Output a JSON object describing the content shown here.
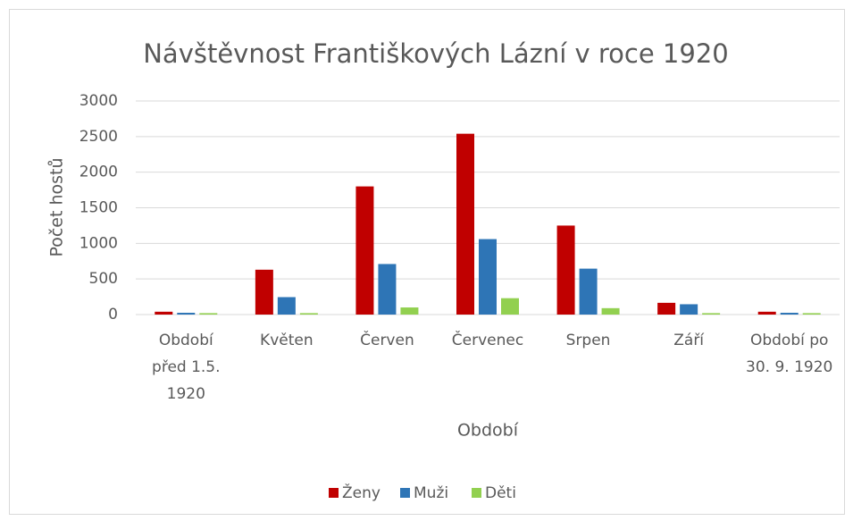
{
  "chart_data": {
    "type": "bar",
    "title": "Návštěvnost Františkových Lázní v roce 1920",
    "x_label": "Období",
    "y_label": "Počet hostů",
    "categories": [
      "Období před 1.5. 1920",
      "Květen",
      "Červen",
      "Červenec",
      "Srpen",
      "Září",
      "Období po 30. 9. 1920"
    ],
    "series": [
      {
        "name": "Ženy",
        "color": "#c00000",
        "values": [
          40,
          630,
          1800,
          2540,
          1250,
          165,
          40
        ]
      },
      {
        "name": "Muži",
        "color": "#2e75b6",
        "values": [
          25,
          245,
          710,
          1060,
          645,
          145,
          25
        ]
      },
      {
        "name": "Děti",
        "color": "#92d050",
        "values": [
          20,
          20,
          100,
          230,
          90,
          20,
          20
        ]
      }
    ],
    "ylim": [
      0,
      3000
    ],
    "yticks": [
      0,
      500,
      1000,
      1500,
      2000,
      2500,
      3000
    ],
    "grid": true,
    "legend": "bottom"
  }
}
